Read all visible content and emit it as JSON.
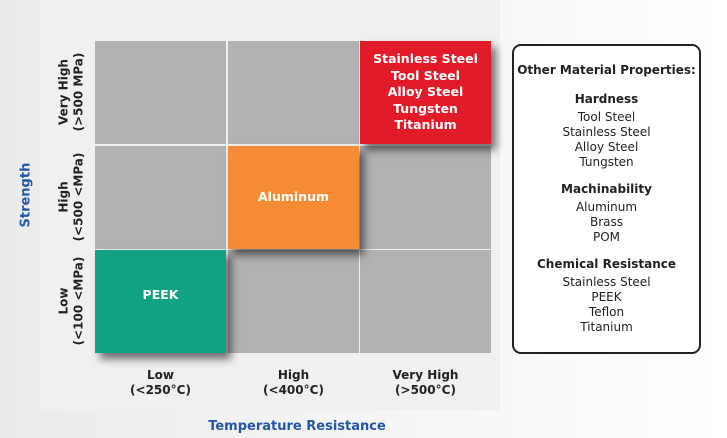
{
  "axes": {
    "y_title": "Strength",
    "x_title": "Temperature Resistance"
  },
  "rows": [
    {
      "label": "Very High",
      "range": "(>500 MPa)"
    },
    {
      "label": "High",
      "range": "(<500 <MPa)"
    },
    {
      "label": "Low",
      "range": "(<100 <MPa)"
    }
  ],
  "columns": [
    {
      "label": "Low",
      "range": "(<250°C)"
    },
    {
      "label": "High",
      "range": "(<400°C)"
    },
    {
      "label": "Very High",
      "range": "(>500°C)"
    }
  ],
  "highlighted_cells": [
    {
      "row": "Very High",
      "column": "Very High",
      "color": "#e21b2b",
      "materials": [
        "Stainless Steel",
        "Tool Steel",
        "Alloy Steel",
        "Tungsten",
        "Titanium"
      ]
    },
    {
      "row": "High",
      "column": "High",
      "color": "#f68b35",
      "materials": [
        "Aluminum"
      ]
    },
    {
      "row": "Low",
      "column": "Low",
      "color": "#11a183",
      "materials": [
        "PEEK"
      ]
    }
  ],
  "empty_cell_color": "#b2b2b2",
  "panel": {
    "title": "Other Material Properties:",
    "sections": [
      {
        "heading": "Hardness",
        "items": [
          "Tool Steel",
          "Stainless Steel",
          "Alloy Steel",
          "Tungsten"
        ]
      },
      {
        "heading": "Machinability",
        "items": [
          "Aluminum",
          "Brass",
          "POM"
        ]
      },
      {
        "heading": "Chemical Resistance",
        "items": [
          "Stainless Steel",
          "PEEK",
          "Teflon",
          "Titanium"
        ]
      }
    ]
  }
}
